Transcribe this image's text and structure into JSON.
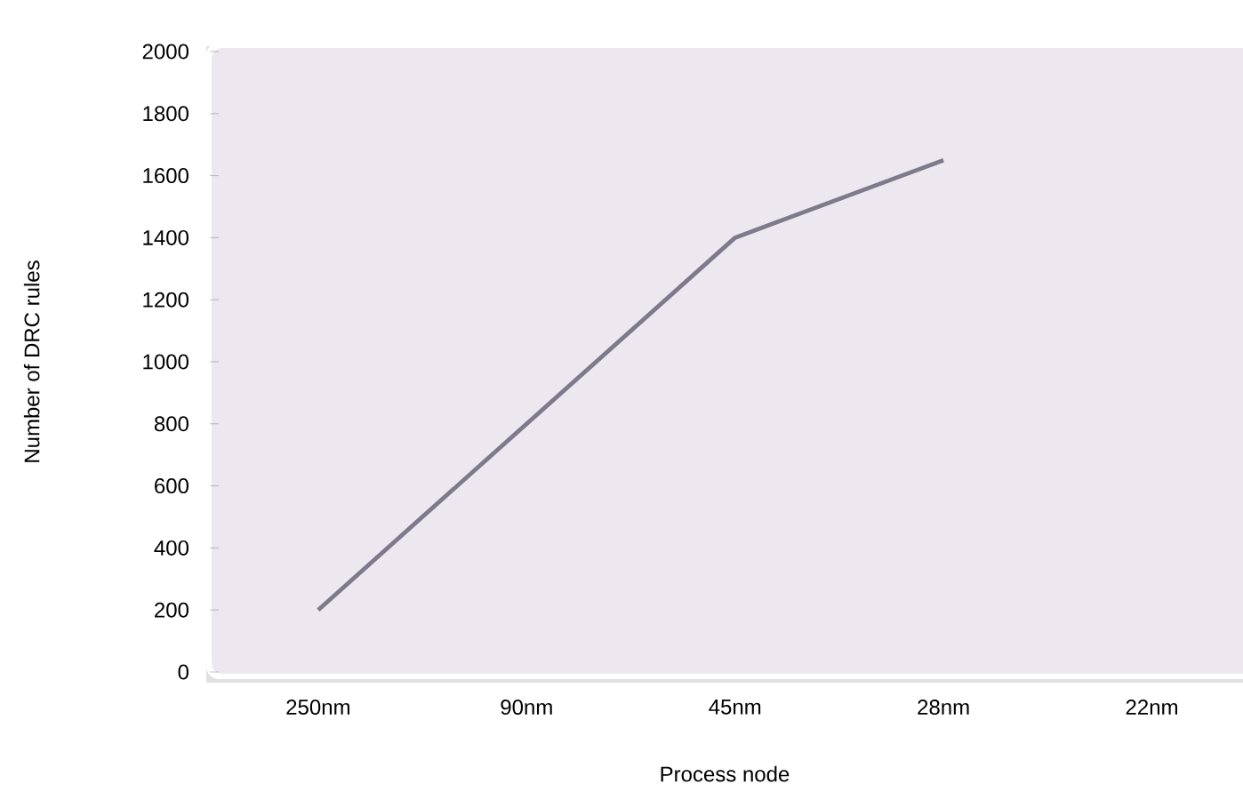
{
  "chart_data": {
    "type": "line",
    "xlabel": "Process node",
    "ylabel": "Number of DRC rules",
    "categories": [
      "250nm",
      "90nm",
      "45nm",
      "28nm",
      "22nm"
    ],
    "ylim": [
      0,
      2000
    ],
    "yticks": [
      0,
      200,
      400,
      600,
      800,
      1000,
      1200,
      1400,
      1600,
      1800,
      2000
    ],
    "series": [
      {
        "color": "#7d7b8a",
        "values": [
          200,
          800,
          1400,
          1650,
          null
        ]
      }
    ],
    "grid": false,
    "marker": "none",
    "line_style": "solid"
  }
}
